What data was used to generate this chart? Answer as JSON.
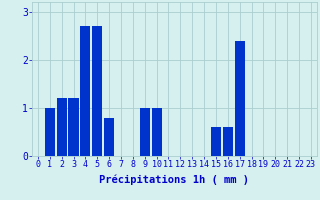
{
  "hours": [
    0,
    1,
    2,
    3,
    4,
    5,
    6,
    7,
    8,
    9,
    10,
    11,
    12,
    13,
    14,
    15,
    16,
    17,
    18,
    19,
    20,
    21,
    22,
    23
  ],
  "values": [
    0,
    1.0,
    1.2,
    1.2,
    2.7,
    2.7,
    0.8,
    0,
    0,
    1.0,
    1.0,
    0,
    0,
    0,
    0,
    0.6,
    0.6,
    2.4,
    0,
    0,
    0,
    0,
    0,
    0
  ],
  "bar_color": "#0033cc",
  "background_color": "#d6f0f0",
  "grid_color": "#aacece",
  "xlabel": "Précipitations 1h ( mm )",
  "xlabel_color": "#0000cc",
  "xlabel_fontsize": 7.5,
  "tick_color": "#0000cc",
  "tick_fontsize": 6,
  "ytick_labels": [
    "0",
    "1",
    "2",
    "3"
  ],
  "ytick_values": [
    0,
    1,
    2,
    3
  ],
  "ylim": [
    0,
    3.2
  ],
  "xlim": [
    -0.5,
    23.5
  ]
}
